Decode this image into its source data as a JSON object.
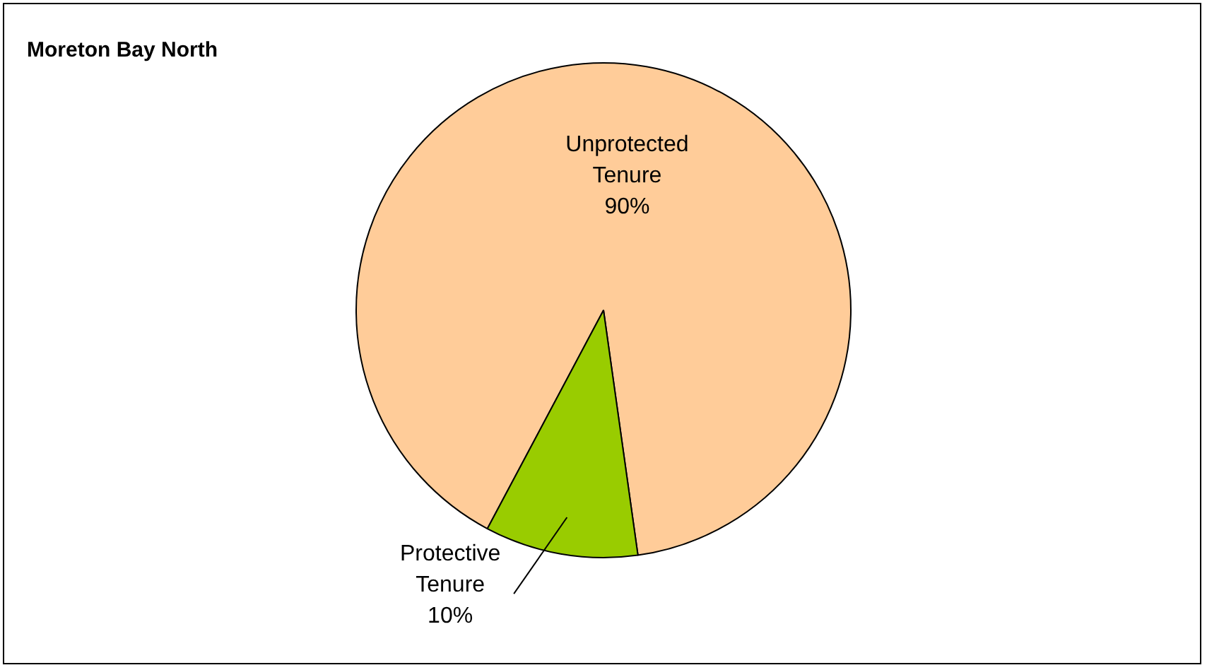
{
  "chart_data": {
    "type": "pie",
    "title": "Moreton Bay North",
    "categories": [
      "Unprotected Tenure",
      "Protective Tenure"
    ],
    "values": [
      90,
      10
    ],
    "colors": [
      "#ffcc99",
      "#99cc00"
    ],
    "value_labels": [
      "90%",
      "10%"
    ],
    "legend": false
  }
}
